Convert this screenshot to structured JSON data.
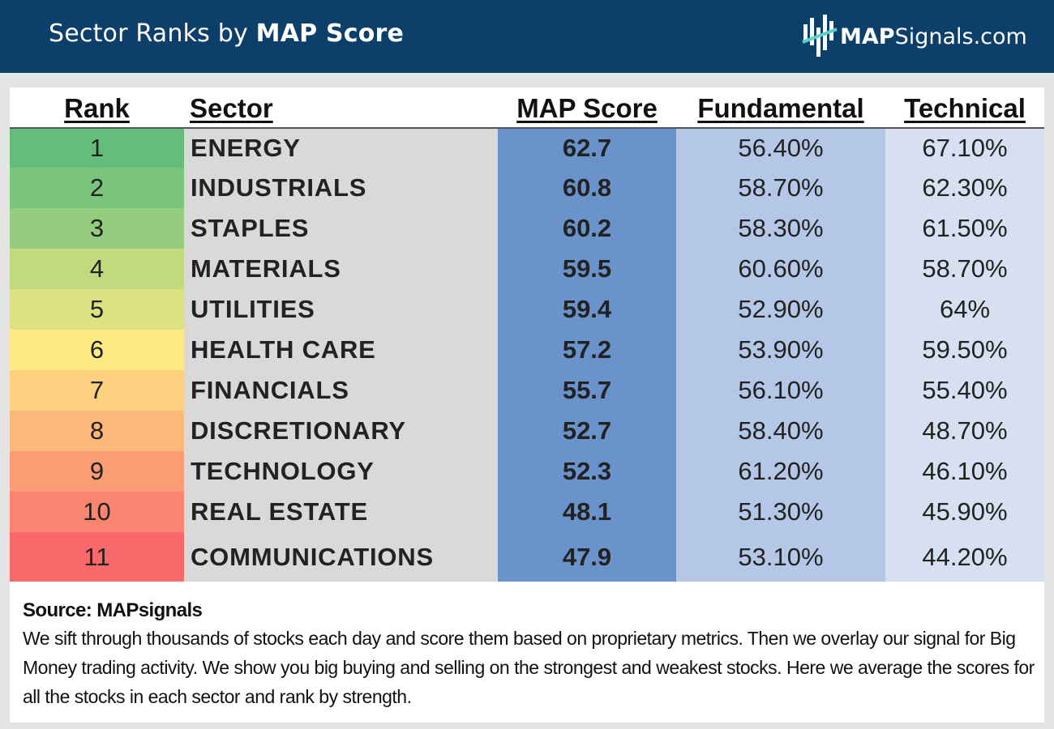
{
  "header": {
    "title_prefix": "Sector Ranks by ",
    "title_bold": "MAP Score",
    "logo_map": "MAP",
    "logo_rest": "Signals.com",
    "bg_color": "#0d3f6b"
  },
  "chart_data": {
    "type": "table",
    "columns": [
      "Rank",
      "Sector",
      "MAP Score",
      "Fundamental",
      "Technical"
    ],
    "rows": [
      {
        "rank": "1",
        "sector": "ENERGY",
        "map_score": "62.7",
        "fundamental": "56.40%",
        "technical": "67.10%",
        "rank_color": "#63be7b"
      },
      {
        "rank": "2",
        "sector": "INDUSTRIALS",
        "map_score": "60.8",
        "fundamental": "58.70%",
        "technical": "62.30%",
        "rank_color": "#7ac57d"
      },
      {
        "rank": "3",
        "sector": "STAPLES",
        "map_score": "60.2",
        "fundamental": "58.30%",
        "technical": "61.50%",
        "rank_color": "#95cd7e"
      },
      {
        "rank": "4",
        "sector": "MATERIALS",
        "map_score": "59.5",
        "fundamental": "60.60%",
        "technical": "58.70%",
        "rank_color": "#c1da80"
      },
      {
        "rank": "5",
        "sector": "UTILITIES",
        "map_score": "59.4",
        "fundamental": "52.90%",
        "technical": "64%",
        "rank_color": "#dde282"
      },
      {
        "rank": "6",
        "sector": "HEALTH CARE",
        "map_score": "57.2",
        "fundamental": "53.90%",
        "technical": "59.50%",
        "rank_color": "#ffeb84"
      },
      {
        "rank": "7",
        "sector": "FINANCIALS",
        "map_score": "55.7",
        "fundamental": "56.10%",
        "technical": "55.40%",
        "rank_color": "#fdd17f"
      },
      {
        "rank": "8",
        "sector": "DISCRETIONARY",
        "map_score": "52.7",
        "fundamental": "58.40%",
        "technical": "48.70%",
        "rank_color": "#fcb77a"
      },
      {
        "rank": "9",
        "sector": "TECHNOLOGY",
        "map_score": "52.3",
        "fundamental": "61.20%",
        "technical": "46.10%",
        "rank_color": "#fa9d75"
      },
      {
        "rank": "10",
        "sector": "REAL ESTATE",
        "map_score": "48.1",
        "fundamental": "51.30%",
        "technical": "45.90%",
        "rank_color": "#f98570"
      },
      {
        "rank": "11",
        "sector": "COMMUNICATIONS",
        "map_score": "47.9",
        "fundamental": "53.10%",
        "technical": "44.20%",
        "rank_color": "#f8696b"
      }
    ],
    "column_colors": {
      "sector": "#d9d9d9",
      "map_score": "#6a93cb",
      "fundamental": "#b4c7e7",
      "technical": "#d6e0f0"
    }
  },
  "footer": {
    "source": "Source: MAPsignals",
    "description": "We sift through thousands of stocks each day and score them based on proprietary metrics. Then we overlay our signal for Big Money trading activity. We show you big buying and selling on the strongest and weakest stocks. Here we average the scores for all the stocks in each sector and rank by strength."
  }
}
